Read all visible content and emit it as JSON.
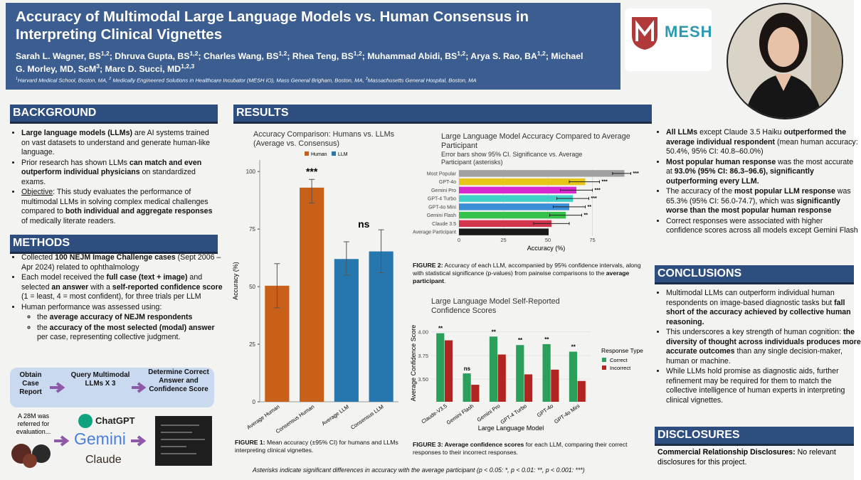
{
  "header": {
    "title": "Accuracy of Multimodal Large Language Models vs. Human Consensus in Interpreting Clinical Vignettes",
    "authors": [
      "Sarah L. Wagner, BS",
      {
        "sup": "1,2"
      },
      "; Dhruva Gupta, BS",
      {
        "sup": "1,2"
      },
      "; Charles Wang, BS",
      {
        "sup": "1,2"
      },
      "; Rhea Teng, BS",
      {
        "sup": "1,2"
      },
      "; Muhammad Abidi, BS",
      {
        "sup": "1,2"
      },
      "; Arya S. Rao, BA",
      {
        "sup": "1,2"
      },
      "; Michael G. Morley, MD, ScM",
      {
        "sup": "3"
      },
      "; Marc D. Succi, MD",
      {
        "sup": "1,2,3"
      }
    ],
    "affiliations": [
      {
        "sup": "1"
      },
      "Harvard Medical School, Boston, MA, ",
      {
        "sup": "2"
      },
      " Medically Engineered Solutions in Healthcare Incubator (MESH IO), Mass General Brigham, Boston, MA, ",
      {
        "sup": "3"
      },
      "Massachusetts General Hospital, Boston, MA"
    ],
    "logo": "MESH"
  },
  "background": {
    "heading": "BACKGROUND",
    "bullets": [
      [
        {
          "bold": "Large language models (LLMs)"
        },
        " are AI systems trained on vast datasets to understand and generate human-like language."
      ],
      [
        "Prior research has shown LLMs ",
        {
          "bold": "can match and even outperform individual physicians"
        },
        " on standardized exams."
      ],
      [
        {
          "u": "Objective"
        },
        ": This study evaluates the performance of multimodal LLMs in solving complex medical challenges compared to ",
        {
          "bold": "both individual and aggregate responses"
        },
        " of medically literate readers."
      ]
    ]
  },
  "methods": {
    "heading": "METHODS",
    "bullets": [
      [
        "Collected ",
        {
          "bold": "100 NEJM Image Challenge cases"
        },
        " (Sept 2006 – Apr 2024) related to ophthalmology"
      ],
      [
        "Each model received the ",
        {
          "bold": "full case (text + image)"
        },
        " and selected ",
        {
          "bold": "an answer"
        },
        " with a ",
        {
          "bold": "self-reported confidence score"
        },
        " (1 = least, 4 = most confident), for three trials per LLM"
      ],
      [
        "Human performance was assessed using:"
      ]
    ],
    "sub_bullets": [
      [
        "the ",
        {
          "bold": "average accuracy of NEJM respondents"
        }
      ],
      [
        "the ",
        {
          "bold": "accuracy of the most selected (modal) answer"
        },
        " per case, representing collective judgment."
      ]
    ],
    "flow": [
      "Obtain Case Report",
      "Query Multimodal LLMs X 3",
      "Determine Correct Answer and Confidence Score"
    ],
    "case_text": "A 28M was referred for evaluation...",
    "logos": [
      "ChatGPT",
      "Gemini",
      "Claude"
    ]
  },
  "results": {
    "heading": "RESULTS",
    "bullets": [
      [
        {
          "bold": "All LLMs"
        },
        " except Claude 3.5 Haiku ",
        {
          "bold": "outperformed the average individual respondent"
        },
        " (mean human accuracy: 50.4%, 95% CI: 40.8–60.0%)"
      ],
      [
        {
          "bold": "Most popular human response"
        },
        " was the most accurate at ",
        {
          "bold": "93.0% (95% CI: 86.3–96.6), significantly outperforming every LLM."
        }
      ],
      [
        "The accuracy of the ",
        {
          "bold": "most popular LLM response"
        },
        " was 65.3% (95% CI: 56.0-74.7), which was ",
        {
          "bold": "significantly worse than the most popular human response"
        }
      ],
      [
        "Correct responses were associated with higher confidence scores across all models except Gemini Flash"
      ]
    ],
    "captions": [
      [
        {
          "bold": "FIGURE 1:"
        },
        " Mean accuracy (±95% CI) for humans and LLMs interpreting clinical vignettes."
      ],
      [
        {
          "bold": "FIGURE 2:"
        },
        " Accuracy of each LLM, accompanied by 95% confidence intervals, along with statistical significance (p-values) from pairwise comparisons to the ",
        {
          "bold": "average participant"
        },
        "."
      ],
      [
        {
          "bold": "FIGURE 3: Average confidence scores"
        },
        " for each LLM, comparing their correct responses to their incorrect responses."
      ]
    ],
    "footnote": "Asterisks indicate significant differences in accuracy with the average participant (p < 0.05: *, p < 0.01: **, p < 0.001: ***)"
  },
  "conclusions": {
    "heading": "CONCLUSIONS",
    "bullets": [
      [
        "Multimodal LLMs can outperform individual human respondents on image-based diagnostic tasks but ",
        {
          "bold": "fall short of the accuracy achieved by collective human reasoning."
        }
      ],
      [
        " This underscores a key strength of human cognition: ",
        {
          "bold": "the diversity of thought across individuals produces more accurate outcomes"
        },
        " than any single decision-maker, human or machine."
      ],
      [
        "While LLMs hold promise as diagnostic aids, further refinement may be required for them to match the collective intelligence of human experts in interpreting clinical vignettes."
      ]
    ]
  },
  "disclosures": {
    "heading": "DISCLOSURES",
    "text": [
      {
        "bold": "Commercial Relationship Disclosures:"
      },
      " No relevant disclosures for this project."
    ]
  },
  "figures": [
    {
      "type": "bar",
      "title": "Accuracy Comparison: Humans vs. LLMs (Average vs. Consensus)",
      "ylabel": "Accuracy (%)",
      "categories": [
        "Average Human",
        "Consensus Human",
        "Average LLM",
        "Consensus LLM"
      ],
      "series": [
        {
          "name": "Human",
          "color": "#c8601a",
          "values": [
            50.4,
            93,
            null,
            null
          ],
          "ci": [
            [
              40.8,
              60
            ],
            [
              86.3,
              96.6
            ],
            null,
            null
          ]
        },
        {
          "name": "LLM",
          "color": "#2677ad",
          "values": [
            null,
            null,
            62,
            65.3
          ],
          "ci": [
            null,
            null,
            [
              55,
              69.5
            ],
            [
              56,
              74.7
            ]
          ]
        }
      ],
      "annotations": [
        "***",
        "ns"
      ],
      "ylim": [
        0,
        105
      ],
      "yticks": [
        0,
        25,
        50,
        75,
        100
      ]
    },
    {
      "type": "hbar",
      "title": "Large Language Model Accuracy Compared to Average Participant",
      "subtitle": "Error bars show 95% CI. Significance vs. Average Participant (asterisks)",
      "xlabel": "Accuracy (%)",
      "categories": [
        "Most Popular",
        "GPT-4o",
        "Gemini Pro",
        "GPT-4 Turbo",
        "GPT-4o Mini",
        "Gemini Flash",
        "Claude 3.5",
        "Average Participant"
      ],
      "values": [
        93,
        71,
        66,
        64,
        62,
        60,
        52,
        50.4
      ],
      "ci": [
        [
          86.3,
          96.6
        ],
        [
          62,
          79
        ],
        [
          57,
          75
        ],
        [
          55,
          73
        ],
        [
          53,
          71
        ],
        [
          51,
          69
        ],
        [
          42,
          62
        ],
        null
      ],
      "colors": [
        "#a0a0a0",
        "#e6c619",
        "#d62ad0",
        "#3fd1c8",
        "#3a8fd6",
        "#35c24a",
        "#d2364d",
        "#1a1a1a"
      ],
      "significance": [
        "***",
        "***",
        "***",
        "***",
        "**",
        "**",
        null,
        null
      ],
      "xlim": [
        0,
        102
      ],
      "xticks": [
        0,
        25,
        50,
        75
      ]
    },
    {
      "type": "grouped-bar",
      "title": "Large Language Model Self-Reported Confidence Scores",
      "ylabel": "Average Confidence Score",
      "xlabel": "Large Language Model",
      "legend_title": "Response Type",
      "categories": [
        "Claude-V3.5",
        "Gemini Flash",
        "Gemini Pro",
        "GPT-4 Turbo",
        "GPT-4o",
        "GPT-4o Mini"
      ],
      "series": [
        {
          "name": "Correct",
          "color": "#2aa05a",
          "values": [
            3.985,
            3.56,
            3.95,
            3.86,
            3.87,
            3.79
          ]
        },
        {
          "name": "Incorrect",
          "color": "#b1241f",
          "values": [
            3.91,
            3.44,
            3.76,
            3.55,
            3.6,
            3.48
          ]
        }
      ],
      "annotations": [
        "**",
        "ns",
        "**",
        "**",
        "**",
        "**"
      ],
      "ylim": [
        3.26,
        4.08
      ],
      "yticks": [
        {
          "value": 3.5,
          "label": "3.50"
        },
        {
          "value": 3.75,
          "label": "3.75"
        },
        {
          "value": 4,
          "label": "4.00"
        }
      ]
    }
  ]
}
